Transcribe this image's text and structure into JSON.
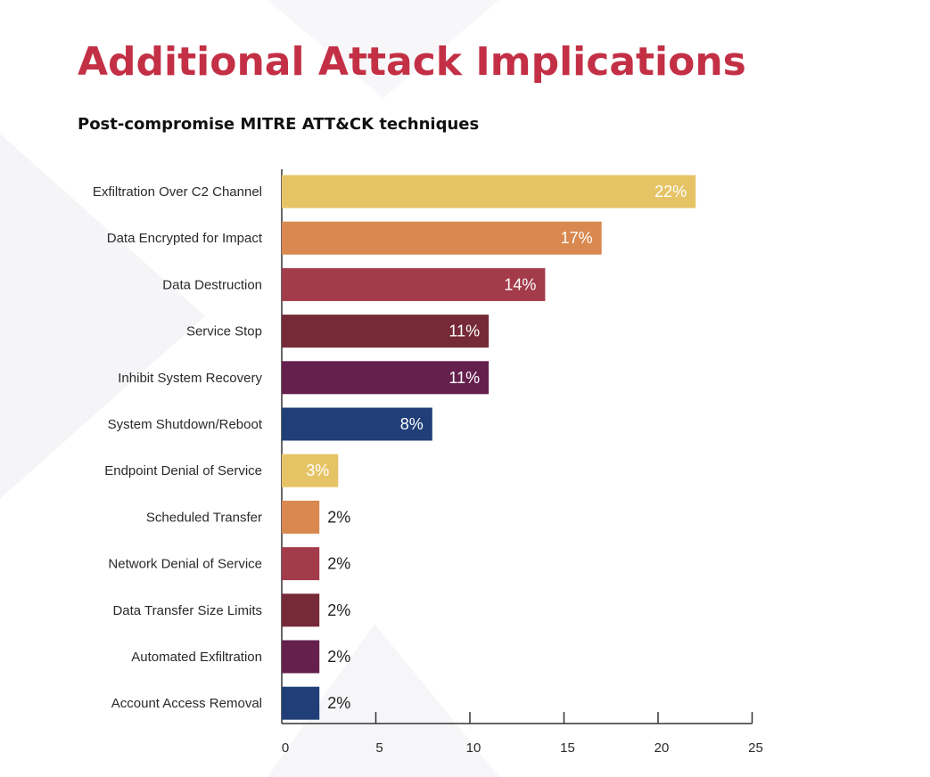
{
  "title": "Additional Attack Implications",
  "subtitle": "Post-compromise MITRE ATT&CK techniques",
  "chart_data": {
    "type": "bar",
    "orientation": "horizontal",
    "categories": [
      "Exfiltration Over C2 Channel",
      "Data Encrypted for Impact",
      "Data Destruction",
      "Service Stop",
      "Inhibit System Recovery",
      "System Shutdown/Reboot",
      "Endpoint Denial of Service",
      "Scheduled Transfer",
      "Network Denial of Service",
      "Data Transfer Size Limits",
      "Automated Exfiltration",
      "Account Access Removal"
    ],
    "values": [
      22,
      17,
      14,
      11,
      11,
      8,
      3,
      2,
      2,
      2,
      2,
      2
    ],
    "value_labels": [
      "22%",
      "17%",
      "14%",
      "11%",
      "11%",
      "8%",
      "3%",
      "2%",
      "2%",
      "2%",
      "2%",
      "2%"
    ],
    "colors": [
      "#e6c466",
      "#d9884f",
      "#a33b4b",
      "#762a37",
      "#65204d",
      "#203f78",
      "#e6c466",
      "#d9884f",
      "#a33b4b",
      "#762a37",
      "#65204d",
      "#203f78"
    ],
    "xlim": [
      0,
      25
    ],
    "xticks": [
      0,
      5,
      10,
      15,
      20,
      25
    ],
    "xtick_labels": [
      "0",
      "5",
      "10",
      "15",
      "20",
      "25"
    ],
    "title": "Additional Attack Implications",
    "subtitle": "Post-compromise MITRE ATT&CK techniques",
    "xlabel": "",
    "ylabel": "",
    "grid": false,
    "legend": "none"
  }
}
